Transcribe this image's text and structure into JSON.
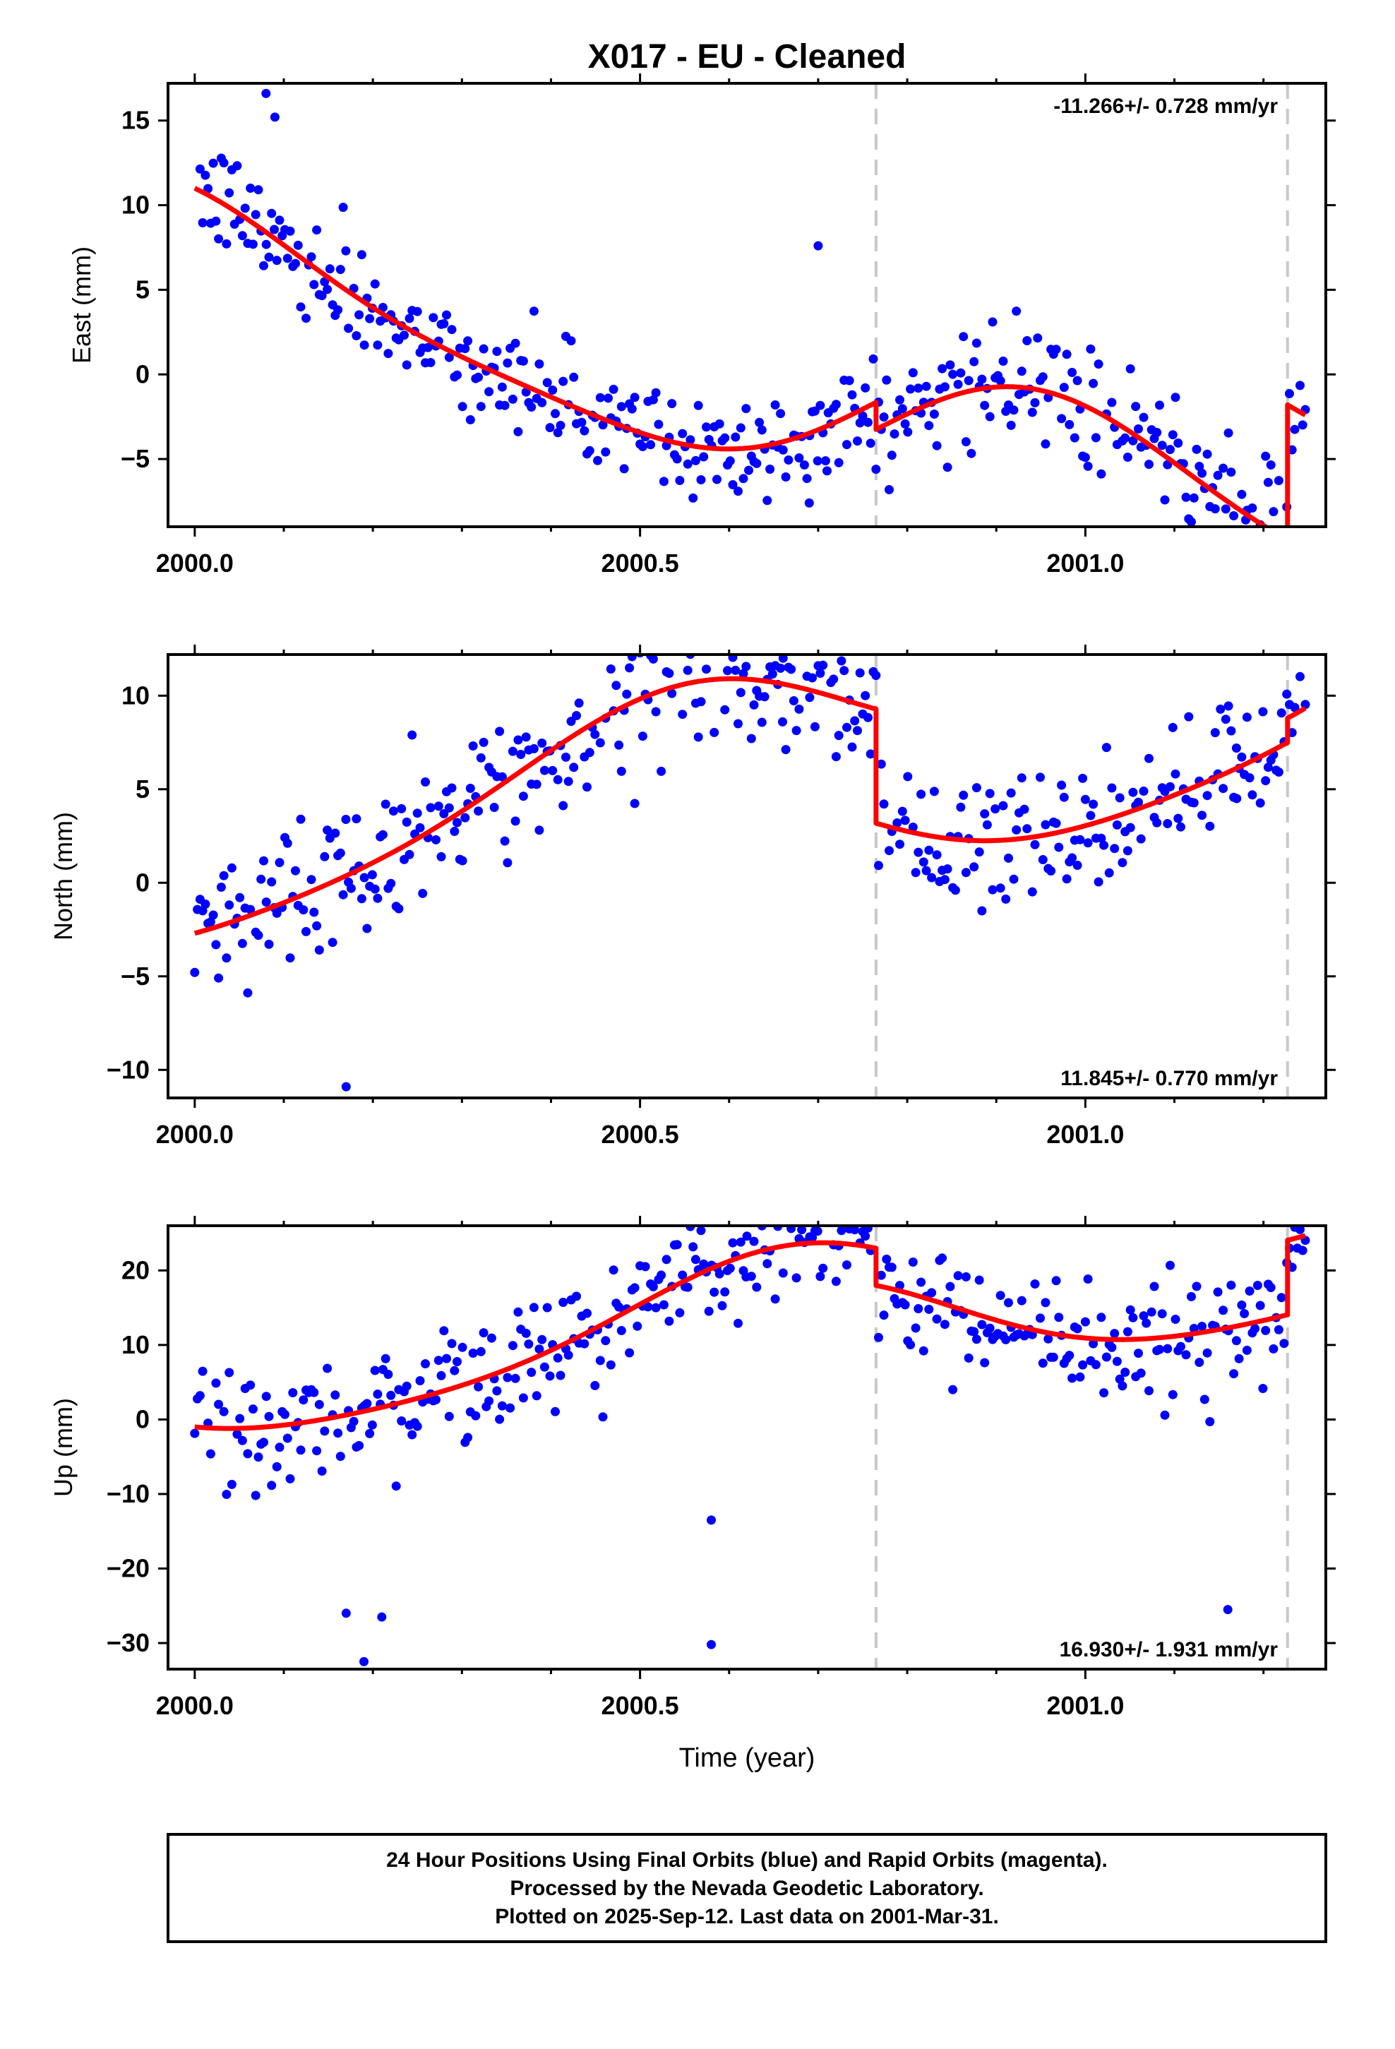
{
  "title": "X017  - EU - Cleaned",
  "colors": {
    "final_orbits": "#0000ff",
    "model_fit": "#ff0000",
    "break_line": "#c8c8c8",
    "axis": "#000000"
  },
  "chart_data": [
    {
      "type": "scatter",
      "ylabel": "East (mm)",
      "rate_label": "-11.266+/- 0.728 mm/yr",
      "rate_position": "top-right",
      "xlim": [
        1999.97,
        2001.27
      ],
      "ylim": [
        -9,
        17.2
      ],
      "xticks": [
        2000.0,
        2000.5,
        2001.0
      ],
      "xtick_labels": [
        "2000.0",
        "2000.5",
        "2001.0"
      ],
      "yticks": [
        15,
        10,
        5,
        0,
        -5
      ],
      "ytick_labels": [
        "15",
        "10",
        "5",
        "0",
        "−5"
      ],
      "offsets": [
        2000.765,
        2001.227
      ],
      "series": [
        {
          "role": "final-orbits",
          "model": {
            "x0": 2000.0,
            "y0": 11.0,
            "rate": -11.27,
            "annual": [
              -0.6,
              4.4
            ],
            "semi": [
              -0.8,
              0.4
            ],
            "breaks": [
              {
                "t": 2000.765,
                "step": -1.6
              },
              {
                "t": 2001.227,
                "step": 8.0
              }
            ]
          },
          "noise": 1.6,
          "outliers": [
            [
              2000.7,
              7.6
            ],
            [
              2000.69,
              -7.6
            ],
            [
              2000.71,
              -5.7
            ],
            [
              2000.08,
              16.6
            ],
            [
              2000.09,
              15.2
            ],
            [
              2001.18,
              -8.6
            ]
          ]
        },
        {
          "role": "model-fit",
          "model": {
            "x0": 2000.0,
            "y0": 11.0,
            "rate": -11.27,
            "annual": [
              -0.6,
              4.4
            ],
            "semi": [
              -0.8,
              0.4
            ],
            "breaks": [
              {
                "t": 2000.765,
                "step": -1.6
              },
              {
                "t": 2001.227,
                "step": 8.0
              }
            ]
          }
        }
      ],
      "data_range": [
        2000.0,
        2001.247
      ],
      "samples": 420
    },
    {
      "type": "scatter",
      "ylabel": "North (mm)",
      "rate_label": "11.845+/- 0.770 mm/yr",
      "rate_position": "bottom-right",
      "xlim": [
        1999.97,
        2001.27
      ],
      "ylim": [
        -11.5,
        12.2
      ],
      "xticks": [
        2000.0,
        2000.5,
        2001.0
      ],
      "xtick_labels": [
        "2000.0",
        "2000.5",
        "2001.0"
      ],
      "yticks": [
        10,
        5,
        0,
        -5,
        -10
      ],
      "ytick_labels": [
        "10",
        "5",
        "0",
        "−5",
        "−10"
      ],
      "offsets": [
        2000.765,
        2001.227
      ],
      "series": [
        {
          "role": "final-orbits",
          "model": {
            "x0": 2000.0,
            "y0": -2.7,
            "rate": 11.85,
            "annual": [
              -0.6,
              -3.3
            ],
            "semi": [
              0.4,
              0.3
            ],
            "breaks": [
              {
                "t": 2000.765,
                "step": -6.1
              },
              {
                "t": 2001.227,
                "step": 1.3
              }
            ]
          },
          "noise": 1.9,
          "outliers": [
            [
              2000.7,
              11.6
            ],
            [
              2000.17,
              -10.9
            ],
            [
              2000.66,
              8.6
            ],
            [
              2001.17,
              4.5
            ]
          ]
        },
        {
          "role": "model-fit",
          "model": {
            "x0": 2000.0,
            "y0": -2.7,
            "rate": 11.85,
            "annual": [
              -0.6,
              -3.3
            ],
            "semi": [
              0.4,
              0.3
            ],
            "breaks": [
              {
                "t": 2000.765,
                "step": -6.1
              },
              {
                "t": 2001.227,
                "step": 1.3
              }
            ]
          }
        }
      ],
      "data_range": [
        2000.0,
        2001.247
      ],
      "samples": 420
    },
    {
      "type": "scatter",
      "ylabel": "Up (mm)",
      "rate_label": "16.930+/- 1.931 mm/yr",
      "rate_position": "bottom-right",
      "xlim": [
        1999.97,
        2001.27
      ],
      "ylim": [
        -33.5,
        26
      ],
      "xticks": [
        2000.0,
        2000.5,
        2001.0
      ],
      "xtick_labels": [
        "2000.0",
        "2000.5",
        "2001.0"
      ],
      "yticks": [
        20,
        10,
        0,
        -10,
        -20,
        -30
      ],
      "ytick_labels": [
        "20",
        "10",
        "0",
        "−10",
        "−20",
        "−30"
      ],
      "offsets": [
        2000.765,
        2001.227
      ],
      "series": [
        {
          "role": "final-orbits",
          "model": {
            "x0": 2000.0,
            "y0": -1.0,
            "rate": 16.93,
            "annual": [
              -6.0,
              -4.0
            ],
            "semi": [
              0.8,
              -0.8
            ],
            "breaks": [
              {
                "t": 2000.765,
                "step": -5.0
              },
              {
                "t": 2001.227,
                "step": 10.0
              }
            ]
          },
          "noise": 4.0,
          "outliers": [
            [
              2000.19,
              -32.5
            ],
            [
              2000.58,
              -30.2
            ],
            [
              2000.17,
              -26.0
            ],
            [
              2000.21,
              -26.5
            ],
            [
              2001.16,
              -25.5
            ],
            [
              2000.62,
              24.6
            ],
            [
              2000.58,
              -13.5
            ]
          ]
        },
        {
          "role": "model-fit",
          "model": {
            "x0": 2000.0,
            "y0": -1.0,
            "rate": 16.93,
            "annual": [
              -6.0,
              -4.0
            ],
            "semi": [
              0.8,
              -0.8
            ],
            "breaks": [
              {
                "t": 2000.765,
                "step": -5.0
              },
              {
                "t": 2001.227,
                "step": 10.0
              }
            ]
          }
        }
      ],
      "data_range": [
        2000.0,
        2001.247
      ],
      "samples": 420
    }
  ],
  "xlabel": "Time (year)",
  "caption": {
    "line1": "24 Hour Positions Using Final Orbits (blue) and Rapid Orbits (magenta).",
    "line2": "Processed by the Nevada Geodetic Laboratory.",
    "line3": "Plotted on 2025-Sep-12. Last data on 2001-Mar-31."
  }
}
